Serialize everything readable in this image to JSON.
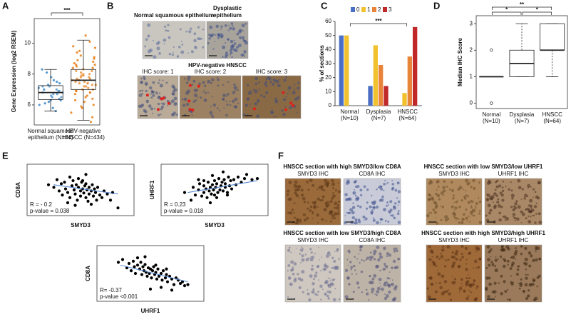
{
  "chart_data": [
    {
      "type": "box",
      "ylabel": "Gene Expression (log2 RSEM)",
      "categories": [
        [
          "Normal squamous",
          "epithelium (N=44)"
        ],
        [
          "HPV-negative",
          "HNSCC (N=434)"
        ]
      ],
      "colors": [
        "#3a87c8",
        "#e8801a"
      ],
      "ylim": [
        4.7,
        11.6
      ],
      "yticks": [
        6,
        8,
        10
      ],
      "boxes": [
        {
          "low": 5.6,
          "q1": 6.35,
          "median": 6.8,
          "q3": 7.25,
          "high": 8.3,
          "outliers": []
        },
        {
          "low": 5.0,
          "q1": 7.0,
          "median": 7.6,
          "q3": 8.3,
          "high": 10.2,
          "outliers": []
        }
      ],
      "points": [
        [
          6.8,
          7.0,
          6.5,
          7.2,
          6.1,
          6.9,
          7.5,
          6.3,
          7.8,
          6.6,
          7.1,
          5.8,
          6.7,
          7.3,
          6.4,
          8.1,
          6.2,
          7.0,
          6.8,
          5.6,
          7.4,
          6.9,
          6.0,
          7.6,
          6.5,
          7.0,
          6.7,
          8.3,
          6.3,
          7.2
        ],
        [
          7.6,
          8.2,
          6.9,
          7.4,
          9.0,
          8.5,
          7.1,
          6.5,
          7.9,
          8.8,
          7.3,
          6.2,
          8.0,
          9.5,
          7.7,
          5.8,
          8.4,
          7.0,
          6.8,
          10.1,
          7.5,
          8.6,
          6.4,
          7.2,
          9.2,
          7.8,
          5.2,
          8.3,
          7.6,
          6.7,
          8.9,
          7.4,
          9.8,
          6.0,
          8.1,
          7.3,
          7.9,
          5.5,
          8.7,
          7.0,
          6.6,
          9.4,
          7.7,
          8.4,
          4.9,
          7.5,
          8.0,
          6.3,
          9.1,
          7.2,
          10.5,
          7.8,
          6.9,
          8.6,
          7.4,
          5.9,
          8.2,
          7.6,
          9.7,
          6.8
        ]
      ],
      "annotations": [
        "***"
      ]
    },
    {
      "type": "bar",
      "ylabel": "% of sections",
      "categories": [
        [
          "Normal",
          "(N=10)"
        ],
        [
          "Dysplasia",
          "(N=7)"
        ],
        [
          "HNSCC",
          "(N=64)"
        ]
      ],
      "ylim": [
        0,
        60
      ],
      "yticks": [
        0,
        10,
        20,
        30,
        40,
        50,
        60
      ],
      "series": [
        {
          "name": "0",
          "color": "#4a6fc4",
          "values": [
            50,
            14,
            0
          ]
        },
        {
          "name": "1",
          "color": "#f2c12e",
          "values": [
            50,
            43,
            9
          ]
        },
        {
          "name": "2",
          "color": "#e8833a",
          "values": [
            0,
            29,
            35
          ]
        },
        {
          "name": "3",
          "color": "#c0282a",
          "values": [
            0,
            14,
            56
          ]
        }
      ],
      "annotations": [
        "***"
      ]
    },
    {
      "type": "box",
      "ylabel": "Median IHC Score",
      "categories": [
        [
          "Normal",
          "(N=10)"
        ],
        [
          "Dysplasia",
          "(N=7)"
        ],
        [
          "HNSCC",
          "(N=64)"
        ]
      ],
      "ylim": [
        -0.2,
        3.3
      ],
      "yticks": [
        0,
        1,
        2,
        3
      ],
      "boxes": [
        {
          "low": 1,
          "q1": 1,
          "median": 1,
          "q3": 1,
          "high": 1,
          "outliers": [
            0,
            2
          ]
        },
        {
          "low": 1,
          "q1": 1,
          "median": 1.5,
          "q3": 2,
          "high": 3,
          "outliers": []
        },
        {
          "low": 1,
          "q1": 2,
          "median": 2,
          "q3": 3,
          "high": 3,
          "outliers": []
        }
      ],
      "annotations": [
        "*",
        "*",
        "**"
      ]
    },
    {
      "type": "scatter",
      "xlabel": "SMYD3",
      "ylabel": "CD8A",
      "xlim": [
        0,
        100
      ],
      "ylim": [
        0,
        100
      ],
      "x": [
        20,
        25,
        28,
        30,
        32,
        33,
        35,
        36,
        38,
        40,
        40,
        42,
        43,
        44,
        45,
        46,
        47,
        48,
        48,
        50,
        50,
        51,
        52,
        53,
        54,
        55,
        55,
        56,
        57,
        58,
        58,
        60,
        61,
        62,
        63,
        64,
        65,
        66,
        68,
        70,
        72,
        75,
        78,
        80,
        55,
        45,
        38,
        52,
        60,
        85
      ],
      "y": [
        60,
        55,
        70,
        48,
        62,
        40,
        65,
        52,
        45,
        75,
        35,
        58,
        68,
        50,
        42,
        60,
        30,
        55,
        72,
        48,
        38,
        65,
        52,
        44,
        58,
        35,
        62,
        50,
        28,
        55,
        42,
        48,
        60,
        38,
        52,
        45,
        30,
        55,
        40,
        35,
        48,
        42,
        30,
        45,
        80,
        20,
        25,
        68,
        22,
        15
      ],
      "fit": {
        "x": [
          25,
          85
        ],
        "y": [
          60,
          42
        ]
      },
      "annotations": [
        "R = - 0.2",
        "p-value = 0.038"
      ]
    },
    {
      "type": "scatter",
      "xlabel": "SMYD3",
      "ylabel": "UHRF1",
      "xlim": [
        0,
        100
      ],
      "ylim": [
        0,
        100
      ],
      "x": [
        22,
        28,
        30,
        32,
        35,
        36,
        38,
        40,
        40,
        42,
        43,
        44,
        45,
        46,
        47,
        48,
        49,
        50,
        50,
        51,
        52,
        53,
        54,
        55,
        56,
        57,
        58,
        59,
        60,
        60,
        62,
        63,
        64,
        65,
        66,
        68,
        70,
        72,
        75,
        78,
        80,
        85,
        46,
        52,
        58,
        40,
        35,
        62,
        48,
        90
      ],
      "y": [
        45,
        30,
        55,
        40,
        50,
        62,
        38,
        45,
        58,
        52,
        35,
        65,
        48,
        55,
        42,
        60,
        50,
        68,
        40,
        55,
        62,
        45,
        72,
        50,
        58,
        65,
        48,
        70,
        55,
        62,
        45,
        75,
        58,
        68,
        52,
        70,
        60,
        75,
        65,
        72,
        80,
        70,
        25,
        35,
        85,
        68,
        70,
        40,
        78,
        72
      ],
      "fit": {
        "x": [
          25,
          90
        ],
        "y": [
          45,
          68
        ]
      },
      "annotations": [
        "R = 0.23",
        "p-value = 0.018"
      ]
    },
    {
      "type": "scatter",
      "xlabel": "UHRF1",
      "ylabel": "CD8A",
      "xlim": [
        0,
        100
      ],
      "ylim": [
        0,
        100
      ],
      "x": [
        20,
        24,
        28,
        30,
        32,
        34,
        35,
        36,
        38,
        40,
        41,
        42,
        43,
        44,
        45,
        46,
        47,
        48,
        49,
        50,
        51,
        52,
        53,
        54,
        55,
        56,
        57,
        58,
        60,
        61,
        62,
        64,
        65,
        66,
        68,
        70,
        72,
        74,
        76,
        78,
        80,
        82,
        85,
        45,
        50,
        55,
        60,
        38,
        65,
        70
      ],
      "y": [
        70,
        75,
        60,
        68,
        55,
        72,
        62,
        50,
        65,
        58,
        70,
        48,
        62,
        55,
        66,
        52,
        45,
        60,
        50,
        58,
        42,
        55,
        62,
        48,
        52,
        40,
        58,
        45,
        50,
        38,
        55,
        42,
        48,
        35,
        45,
        40,
        30,
        42,
        38,
        32,
        35,
        28,
        30,
        80,
        22,
        65,
        25,
        78,
        58,
        20
      ],
      "fit": {
        "x": [
          22,
          85
        ],
        "y": [
          65,
          35
        ]
      },
      "annotations": [
        "R= -0.37",
        "p-value <0.001"
      ]
    }
  ],
  "figure": {
    "letters": [
      "A",
      "B",
      "C",
      "D",
      "E",
      "F"
    ],
    "B": {
      "top": [
        [
          "Normal squamous epithelium"
        ],
        [
          "Dysplastic",
          "epithelium"
        ]
      ],
      "subtitle": "HPV-negative HNSCC",
      "scores": [
        "IHC score: 1",
        "IHC score: 2",
        "IHC score: 3"
      ]
    },
    "F": {
      "sections": [
        {
          "title": "HNSCC section with high SMYD3/low CD8A",
          "stains": [
            "SMYD3 IHC",
            "CD8A IHC"
          ]
        },
        {
          "title": "HNSCC section with low SMYD3/low UHRF1",
          "stains": [
            "SMYD3 IHC",
            "UHRF1 IHC"
          ]
        },
        {
          "title": "HNSCC section with low SMYD3/high CD8A",
          "stains": [
            "SMYD3 IHC",
            "CD8A IHC"
          ]
        },
        {
          "title": "HNSCC section with high SMYD3/high UHRF1",
          "stains": [
            "SMYD3 IHC",
            "UHRF1 IHC"
          ]
        }
      ]
    }
  }
}
